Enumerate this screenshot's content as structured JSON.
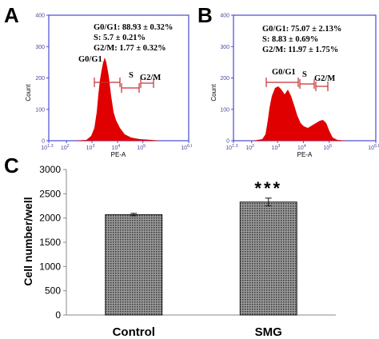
{
  "colors": {
    "histogram_fill": "#e00000",
    "flow_frame": "#4a4ad0",
    "gate_marker": "#c03030",
    "bar_fill": "#777777"
  },
  "chart_data": [
    {
      "panel": "A",
      "type": "area",
      "xlabel": "PE-A",
      "ylabel": "Count",
      "x_ticks": [
        "10^1.3",
        "10^2",
        "10^3",
        "10^4",
        "10^5",
        "10^6.8"
      ],
      "y_ticks": [
        "0",
        "100",
        "200",
        "300",
        "400"
      ],
      "ylim": [
        0,
        400
      ],
      "annotations": [
        "G0/G1: 88.93 ± 0.32%",
        "S: 5.7 ± 0.21%",
        "G2/M: 1.77 ± 0.32%"
      ],
      "gates": [
        "G0/G1",
        "S",
        "G2/M"
      ],
      "histogram_peaks": [
        {
          "x": "10^3.9",
          "count": 300
        }
      ]
    },
    {
      "panel": "B",
      "type": "area",
      "xlabel": "PE-A",
      "ylabel": "Count",
      "x_ticks": [
        "10^1.3",
        "10^2",
        "10^3",
        "10^4",
        "10^5",
        "10^6.8"
      ],
      "y_ticks": [
        "0",
        "100",
        "200",
        "300",
        "400"
      ],
      "ylim": [
        0,
        400
      ],
      "annotations": [
        "G0/G1: 75.07 ± 2.13%",
        "S: 8.83 ± 0.69%",
        "G2/M: 11.97 ± 1.75%"
      ],
      "gates": [
        "G0/G1",
        "S",
        "G2/M"
      ],
      "histogram_peaks": [
        {
          "x": "10^3.9",
          "count": 130
        },
        {
          "x": "10^5.3",
          "count": 40
        }
      ]
    },
    {
      "panel": "C",
      "type": "bar",
      "categories": [
        "Control",
        "SMG"
      ],
      "values": [
        2070,
        2330
      ],
      "errors": [
        25,
        80
      ],
      "ylabel": "Cell number/well",
      "ylim": [
        0,
        3000
      ],
      "y_ticks": [
        "0",
        "500",
        "1000",
        "1500",
        "2000",
        "2500",
        "3000"
      ],
      "significance": [
        "",
        "***"
      ]
    }
  ]
}
